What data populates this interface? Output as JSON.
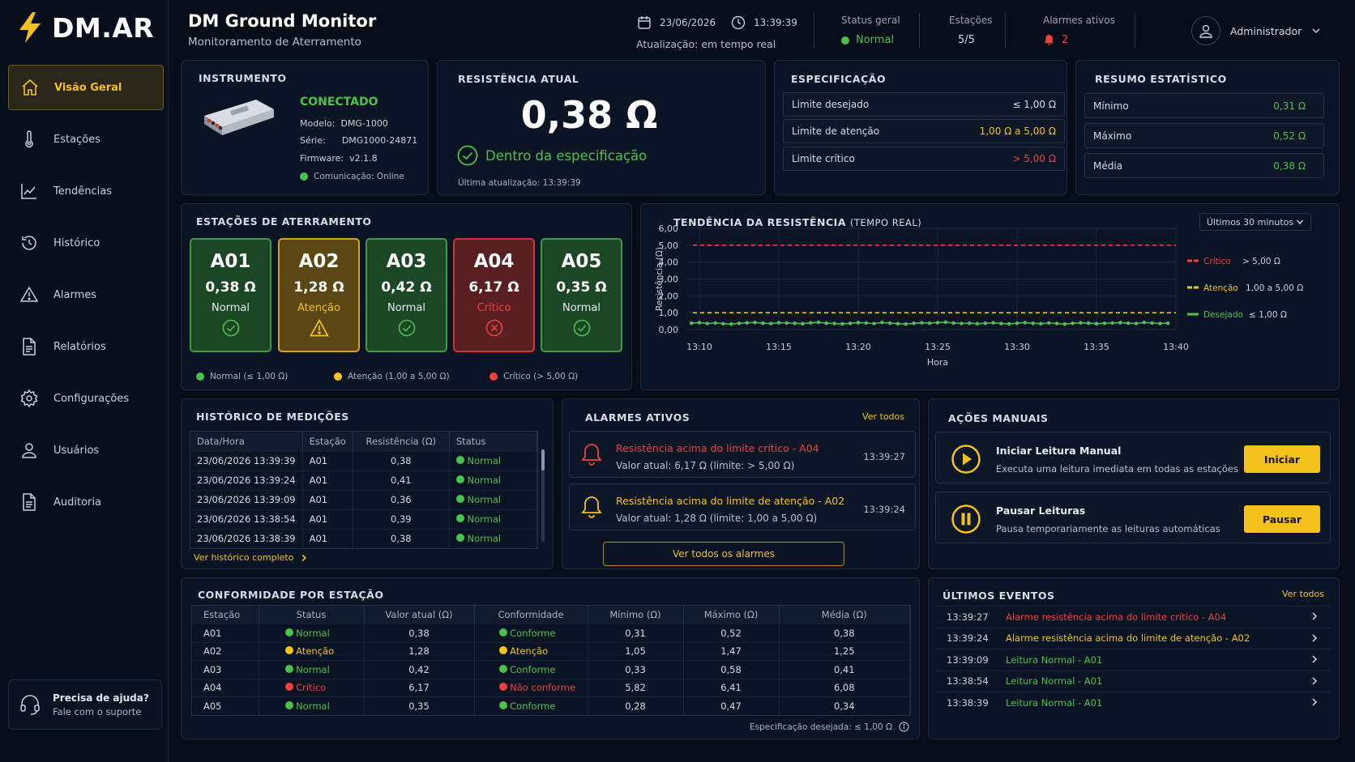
{
  "brand": {
    "name": "DM.AR"
  },
  "sidebar": {
    "items": [
      {
        "label": "Visão Geral",
        "icon": "home-icon"
      },
      {
        "label": "Estações",
        "icon": "thermometer-icon"
      },
      {
        "label": "Tendências",
        "icon": "trend-chart-icon"
      },
      {
        "label": "Histórico",
        "icon": "history-icon"
      },
      {
        "label": "Alarmes",
        "icon": "warning-icon"
      },
      {
        "label": "Relatórios",
        "icon": "document-icon"
      },
      {
        "label": "Configurações",
        "icon": "gear-icon"
      },
      {
        "label": "Usuários",
        "icon": "user-icon"
      },
      {
        "label": "Auditoria",
        "icon": "audit-icon"
      }
    ],
    "help": {
      "title": "Precisa de ajuda?",
      "subtitle": "Fale com o suporte"
    }
  },
  "header": {
    "title": "DM Ground Monitor",
    "subtitle": "Monitoramento de Aterramento",
    "date": "23/06/2026",
    "time": "13:39:39",
    "update": "Atualização: em tempo real",
    "status_label": "Status geral",
    "status_value": "Normal",
    "stations_label": "Estações",
    "stations_value": "5/5",
    "alarms_label": "Alarmes ativos",
    "alarms_value": "2",
    "user": "Administrador"
  },
  "colors": {
    "accent": "#f4c21b",
    "normal": "#4cc04f",
    "attention": "#f4c21b",
    "critical": "#ef4040",
    "background": "#070d18"
  },
  "instrument": {
    "title": "INSTRUMENTO",
    "status": "CONECTADO",
    "model_label": "Modelo:",
    "model": "DMG-1000",
    "serial_label": "Série:",
    "serial": "DMG1000-24871",
    "firmware_label": "Firmware:",
    "firmware": "v2.1.8",
    "comm": "Comunicação: Online"
  },
  "resistance": {
    "title": "RESISTÊNCIA ATUAL",
    "value": "0,38 Ω",
    "status": "Dentro da especificação",
    "last_update": "Última atualização: 13:39:39"
  },
  "spec": {
    "title": "ESPECIFICAÇÃO",
    "rows": [
      {
        "label": "Limite desejado",
        "value": "≤ 1,00 Ω"
      },
      {
        "label": "Limite de atenção",
        "value": "1,00 Ω a 5,00 Ω"
      },
      {
        "label": "Limite crítico",
        "value": "> 5,00 Ω"
      }
    ]
  },
  "stats": {
    "title": "RESUMO ESTATÍSTICO",
    "rows": [
      {
        "label": "Mínimo",
        "value": "0,31 Ω"
      },
      {
        "label": "Máximo",
        "value": "0,52 Ω"
      },
      {
        "label": "Média",
        "value": "0,38 Ω"
      }
    ]
  },
  "stations": {
    "title": "ESTAÇÕES DE ATERRAMENTO",
    "cards": [
      {
        "code": "A01",
        "value": "0,38 Ω",
        "status": "Normal"
      },
      {
        "code": "A02",
        "value": "1,28 Ω",
        "status": "Atenção"
      },
      {
        "code": "A03",
        "value": "0,42 Ω",
        "status": "Normal"
      },
      {
        "code": "A04",
        "value": "6,17 Ω",
        "status": "Crítico"
      },
      {
        "code": "A05",
        "value": "0,35 Ω",
        "status": "Normal"
      }
    ],
    "legend": [
      "Normal (≤ 1,00 Ω)",
      "Atenção (1,00 a 5,00 Ω)",
      "Crítico (> 5,00 Ω)"
    ]
  },
  "trend": {
    "title": "TENDÊNCIA DA RESISTÊNCIA",
    "title_suffix": "(TEMPO REAL)",
    "range": "Últimos 30 minutos"
  },
  "chart_data": {
    "type": "line",
    "xlabel": "Hora",
    "ylabel": "Resistência (Ω)",
    "x_ticks": [
      "13:10",
      "13:15",
      "13:20",
      "13:25",
      "13:30",
      "13:35",
      "13:40"
    ],
    "y_ticks": [
      "6,00",
      "5,00",
      "4,00",
      "3,00",
      "2,00",
      "1,00",
      "0,00"
    ],
    "ylim": [
      0,
      6
    ],
    "xlim": [
      "13:10",
      "13:40"
    ],
    "grid": true,
    "legend_position": "right",
    "thresholds": [
      {
        "name": "Crítico",
        "label": "> 5,00 Ω",
        "value": 5.0,
        "color": "#ef4040",
        "style": "dashed"
      },
      {
        "name": "Atenção",
        "label": "1,00 a 5,00 Ω",
        "value": 1.0,
        "color": "#f4c21b",
        "style": "dashed"
      },
      {
        "name": "Desejado",
        "label": "≤ 1,00 Ω",
        "color": "#4cc04f",
        "style": "solid"
      }
    ],
    "series": [
      {
        "color": "#4cc04f",
        "x": [
          "13:09:30",
          "13:10:00",
          "13:10:30",
          "13:11:00",
          "13:11:30",
          "13:12:00",
          "13:12:30",
          "13:13:00",
          "13:13:30",
          "13:14:00",
          "13:14:30",
          "13:15:00",
          "13:15:30",
          "13:16:00",
          "13:16:30",
          "13:17:00",
          "13:17:30",
          "13:18:00",
          "13:18:30",
          "13:19:00",
          "13:19:30",
          "13:20:00",
          "13:20:30",
          "13:21:00",
          "13:21:30",
          "13:22:00",
          "13:22:30",
          "13:23:00",
          "13:23:30",
          "13:24:00",
          "13:24:30",
          "13:25:00",
          "13:25:30",
          "13:26:00",
          "13:26:30",
          "13:27:00",
          "13:27:30",
          "13:28:00",
          "13:28:30",
          "13:29:00",
          "13:29:30",
          "13:30:00",
          "13:30:30",
          "13:31:00",
          "13:31:30",
          "13:32:00",
          "13:32:30",
          "13:33:00",
          "13:33:30",
          "13:34:00",
          "13:34:30",
          "13:35:00",
          "13:35:30",
          "13:36:00",
          "13:36:30",
          "13:37:00",
          "13:37:30",
          "13:38:00",
          "13:38:30",
          "13:39:00",
          "13:39:30"
        ],
        "values": [
          0.38,
          0.41,
          0.36,
          0.39,
          0.35,
          0.33,
          0.37,
          0.4,
          0.42,
          0.38,
          0.36,
          0.41,
          0.39,
          0.37,
          0.35,
          0.4,
          0.43,
          0.38,
          0.36,
          0.34,
          0.37,
          0.41,
          0.39,
          0.36,
          0.42,
          0.38,
          0.35,
          0.33,
          0.37,
          0.4,
          0.38,
          0.41,
          0.44,
          0.39,
          0.36,
          0.38,
          0.35,
          0.37,
          0.4,
          0.36,
          0.34,
          0.38,
          0.41,
          0.37,
          0.35,
          0.39,
          0.36,
          0.33,
          0.37,
          0.4,
          0.38,
          0.35,
          0.37,
          0.39,
          0.41,
          0.38,
          0.36,
          0.42,
          0.39,
          0.36,
          0.38
        ]
      }
    ]
  },
  "history": {
    "title": "HISTÓRICO DE MEDIÇÕES",
    "columns": [
      "Data/Hora",
      "Estação",
      "Resistência (Ω)",
      "Status"
    ],
    "rows": [
      {
        "dt": "23/06/2026 13:39:39",
        "st": "A01",
        "val": "0,38",
        "status": "Normal"
      },
      {
        "dt": "23/06/2026 13:39:24",
        "st": "A01",
        "val": "0,41",
        "status": "Normal"
      },
      {
        "dt": "23/06/2026 13:39:09",
        "st": "A01",
        "val": "0,36",
        "status": "Normal"
      },
      {
        "dt": "23/06/2026 13:38:54",
        "st": "A01",
        "val": "0,39",
        "status": "Normal"
      },
      {
        "dt": "23/06/2026 13:38:39",
        "st": "A01",
        "val": "0,38",
        "status": "Normal"
      }
    ],
    "link": "Ver histórico completo"
  },
  "alarms": {
    "title": "ALARMES ATIVOS",
    "see_all": "Ver todos",
    "items": [
      {
        "title": "Resistência acima do limite crítico - A04",
        "detail": "Valor atual: 6,17 Ω (limite: > 5,00 Ω)",
        "time": "13:39:27",
        "level": "critical"
      },
      {
        "title": "Resistência acima do limite de atenção - A02",
        "detail": "Valor atual: 1,28 Ω (limite: 1,00 a 5,00 Ω)",
        "time": "13:39:24",
        "level": "attention"
      }
    ],
    "button": "Ver todos os alarmes"
  },
  "actions": {
    "title": "AÇÕES MANUAIS",
    "items": [
      {
        "title": "Iniciar Leitura Manual",
        "desc": "Executa uma leitura imediata em todas as estações",
        "button": "Iniciar",
        "icon": "play-icon"
      },
      {
        "title": "Pausar Leituras",
        "desc": "Pausa temporariamente as leituras automáticas",
        "button": "Pausar",
        "icon": "pause-icon"
      }
    ]
  },
  "conformity": {
    "title": "CONFORMIDADE POR ESTAÇÃO",
    "columns": [
      "Estação",
      "Status",
      "Valor atual (Ω)",
      "Conformidade",
      "Mínimo (Ω)",
      "Máximo (Ω)",
      "Média (Ω)"
    ],
    "rows": [
      {
        "st": "A01",
        "status": "Normal",
        "val": "0,38",
        "conf": "Conforme",
        "min": "0,31",
        "max": "0,52",
        "avg": "0,38",
        "level": "g"
      },
      {
        "st": "A02",
        "status": "Atenção",
        "val": "1,28",
        "conf": "Atenção",
        "min": "1,05",
        "max": "1,47",
        "avg": "1,25",
        "level": "y"
      },
      {
        "st": "A03",
        "status": "Normal",
        "val": "0,42",
        "conf": "Conforme",
        "min": "0,33",
        "max": "0,58",
        "avg": "0,41",
        "level": "g"
      },
      {
        "st": "A04",
        "status": "Crítico",
        "val": "6,17",
        "conf": "Não conforme",
        "min": "5,82",
        "max": "6,41",
        "avg": "6,08",
        "level": "r"
      },
      {
        "st": "A05",
        "status": "Normal",
        "val": "0,35",
        "conf": "Conforme",
        "min": "0,28",
        "max": "0,47",
        "avg": "0,34",
        "level": "g"
      }
    ],
    "footnote": "Especificação desejada: ≤ 1,00 Ω"
  },
  "events": {
    "title": "ÚLTIMOS EVENTOS",
    "see_all": "Ver todos",
    "items": [
      {
        "time": "13:39:27",
        "text": "Alarme resistência acima do limite crítico - A04",
        "level": "r"
      },
      {
        "time": "13:39:24",
        "text": "Alarme resistência acima do limite de atenção - A02",
        "level": "y"
      },
      {
        "time": "13:39:09",
        "text": "Leitura Normal - A01",
        "level": "g"
      },
      {
        "time": "13:38:54",
        "text": "Leitura Normal - A01",
        "level": "g"
      },
      {
        "time": "13:38:39",
        "text": "Leitura Normal - A01",
        "level": "g"
      }
    ]
  }
}
